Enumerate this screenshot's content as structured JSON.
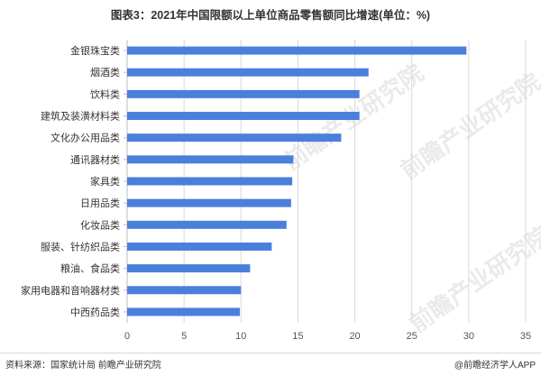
{
  "title": "图表3：2021年中国限额以上单位商品零售额同比增速(单位：%)",
  "chart_data": {
    "type": "bar",
    "orientation": "horizontal",
    "categories": [
      "金银珠宝类",
      "烟酒类",
      "饮料类",
      "建筑及装潢材料类",
      "文化办公用品类",
      "通讯器材类",
      "家具类",
      "日用品类",
      "化妆品类",
      "服装、针纺织品类",
      "粮油、食品类",
      "家用电器和音响器材类",
      "中西药品类"
    ],
    "values": [
      29.8,
      21.2,
      20.4,
      20.4,
      18.8,
      14.6,
      14.5,
      14.4,
      14.0,
      12.7,
      10.8,
      10.0,
      9.9
    ],
    "xlim": [
      0,
      35
    ],
    "xticks": [
      0,
      5,
      10,
      15,
      20,
      25,
      30,
      35
    ],
    "grid": "vertical",
    "bar_color": "#4a7fdc"
  },
  "footer": {
    "source": "资料来源：国家统计局 前瞻产业研究院",
    "brand": "@前瞻经济学人APP"
  },
  "watermark": "前瞻产业研究院"
}
